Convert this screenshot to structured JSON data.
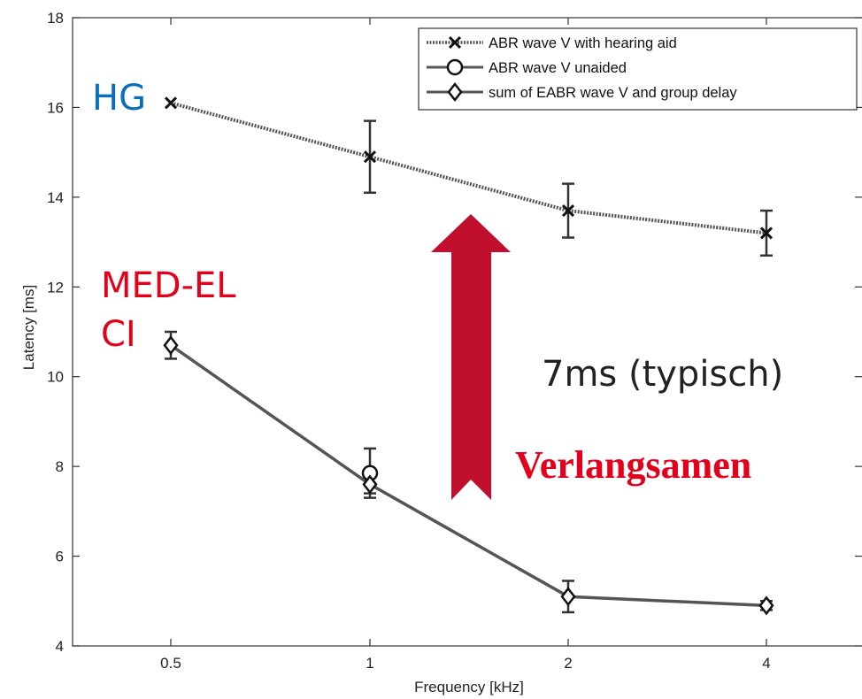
{
  "chart_data": {
    "type": "line",
    "x_scale": "log2",
    "xlabel": "Frequency [kHz]",
    "ylabel": "Latency [ms]",
    "x_ticks": [
      0.5,
      1,
      2,
      4
    ],
    "x_tick_labels": [
      "0.5",
      "1",
      "2",
      "4"
    ],
    "y_ticks": [
      4,
      6,
      8,
      10,
      12,
      14,
      16,
      18
    ],
    "y_tick_labels": [
      "4",
      "6",
      "8",
      "10",
      "12",
      "14",
      "16",
      "18"
    ],
    "ylim": [
      4,
      18
    ],
    "grid": false,
    "legend_position": "top-right",
    "series": [
      {
        "name": "ABR wave V with hearing aid",
        "marker": "x",
        "line_style": "dotted",
        "x": [
          0.5,
          1,
          2,
          4
        ],
        "y": [
          16.1,
          14.9,
          13.7,
          13.2
        ],
        "err": [
          0.0,
          0.8,
          0.6,
          0.5
        ]
      },
      {
        "name": "ABR wave V unaided",
        "marker": "circle",
        "line_style": "solid",
        "x": [
          1
        ],
        "y": [
          7.85
        ],
        "err": [
          0.55
        ]
      },
      {
        "name": "sum of EABR wave V and group delay",
        "marker": "diamond",
        "line_style": "solid",
        "x": [
          0.5,
          1,
          2,
          4
        ],
        "y": [
          10.7,
          7.6,
          5.1,
          4.9
        ],
        "err": [
          0.3,
          0.2,
          0.35,
          0.1
        ]
      }
    ],
    "annotations": {
      "hg": "HG",
      "medel_line1": "MED-EL",
      "medel_line2": "CI",
      "delay": "7ms (typisch)",
      "slowdown": "Verlangsamen"
    },
    "colors": {
      "series_line": "#555555",
      "arrow": "#c0102e",
      "hg_text": "#0a6fb8",
      "red_text": "#e3001b"
    }
  }
}
